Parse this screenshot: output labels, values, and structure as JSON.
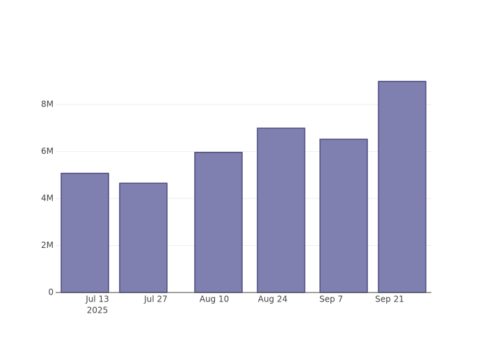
{
  "chart_data": {
    "type": "bar",
    "x": [
      "2025-07-10",
      "2025-07-24",
      "2025-08-11",
      "2025-08-26",
      "2025-09-10",
      "2025-09-24"
    ],
    "values": [
      5070000,
      4650000,
      5960000,
      6990000,
      6520000,
      8980000
    ],
    "color": "#7f7fb0",
    "edgecolor": "#4b4a7f",
    "xlim": [
      "2025-07-03",
      "2025-10-01"
    ],
    "xticks": [
      {
        "value": "2025-07-13",
        "label": "Jul 13"
      },
      {
        "value": "2025-07-27",
        "label": "Jul 27"
      },
      {
        "value": "2025-08-10",
        "label": "Aug 10"
      },
      {
        "value": "2025-08-24",
        "label": "Aug 24"
      },
      {
        "value": "2025-09-07",
        "label": "Sep 7"
      },
      {
        "value": "2025-09-21",
        "label": "Sep 21"
      }
    ],
    "year_label": "2025",
    "ylim": [
      0,
      9480000
    ],
    "yticks": [
      0,
      {
        "value": 2000000,
        "label": "2M"
      },
      {
        "value": 4000000,
        "label": "4M"
      },
      {
        "value": 6000000,
        "label": "6M"
      },
      {
        "value": 8000000,
        "label": "8M"
      }
    ],
    "grid": true
  }
}
